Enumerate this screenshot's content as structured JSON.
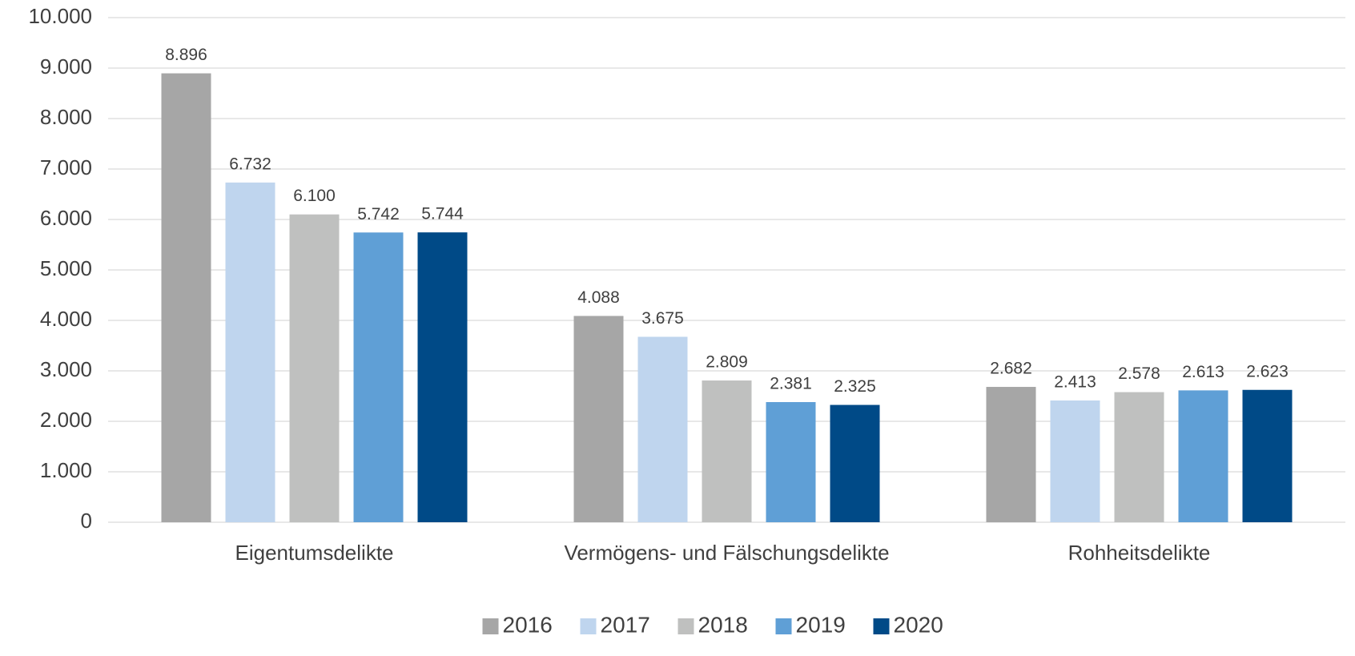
{
  "chart_data": {
    "type": "bar",
    "categories": [
      "Eigentumsdelikte",
      "Vermögens- und Fälschungsdelikte",
      "Rohheitsdelikte"
    ],
    "series": [
      {
        "name": "2016",
        "color": "#a6a6a6",
        "values": [
          8896,
          4088,
          2682
        ],
        "value_labels": [
          "8.896",
          "4.088",
          "2.682"
        ]
      },
      {
        "name": "2017",
        "color": "#bfd5ee",
        "values": [
          6732,
          3675,
          2413
        ],
        "value_labels": [
          "6.732",
          "3.675",
          "2.413"
        ]
      },
      {
        "name": "2018",
        "color": "#bfc0bf",
        "values": [
          6100,
          2809,
          2578
        ],
        "value_labels": [
          "6.100",
          "2.809",
          "2.578"
        ]
      },
      {
        "name": "2019",
        "color": "#5f9fd6",
        "values": [
          5742,
          2381,
          2613
        ],
        "value_labels": [
          "5.742",
          "2.381",
          "2.613"
        ]
      },
      {
        "name": "2020",
        "color": "#004a87",
        "values": [
          5744,
          2325,
          2623
        ],
        "value_labels": [
          "5.744",
          "2.325",
          "2.623"
        ]
      }
    ],
    "ylim": [
      0,
      10000
    ],
    "yticks": [
      0,
      {
        "value": 1000,
        "label": "1.000"
      },
      {
        "value": 2000,
        "label": "2.000"
      },
      {
        "value": 3000,
        "label": "3.000"
      },
      {
        "value": 4000,
        "label": "4.000"
      },
      {
        "value": 5000,
        "label": "5.000"
      },
      {
        "value": 6000,
        "label": "6.000"
      },
      {
        "value": 7000,
        "label": "7.000"
      },
      {
        "value": 8000,
        "label": "8.000"
      },
      {
        "value": 9000,
        "label": "9.000"
      },
      {
        "value": 10000,
        "label": "10.000"
      }
    ],
    "grid": true,
    "legend": "bottom"
  }
}
